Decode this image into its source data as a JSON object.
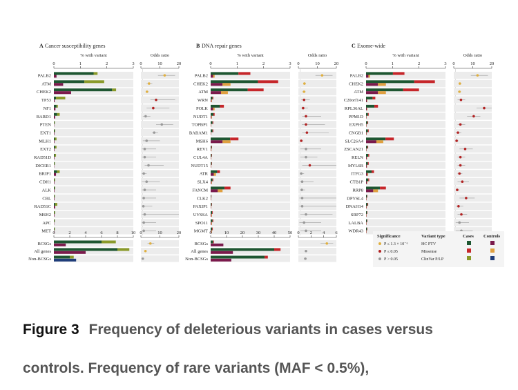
{
  "colors": {
    "cases_hc": "#1e5631",
    "controls_hc": "#7b1a4c",
    "cases_mis": "#c6262a",
    "controls_mis": "#e0a040",
    "cases_clin": "#8a9a2a",
    "controls_clin": "#1f3d7a",
    "or_sig1": "#e0b040",
    "or_sig2": "#b22222",
    "or_ns": "#999999",
    "row_bg": "#ececec"
  },
  "chart_data": [
    {
      "type": "bar",
      "panel": "A",
      "title": "Cancer susceptibility genes",
      "xlabel": "% with variant",
      "xlim": [
        0,
        3
      ],
      "xticks": [
        "0",
        "1",
        "2",
        "3"
      ],
      "categories": [
        "PALB2",
        "ATM",
        "CHEK2",
        "TP53",
        "NF1",
        "BARD1",
        "PTEN",
        "EXT1",
        "MLH1",
        "EXT2",
        "RAD51D",
        "DICER1",
        "BRIP1",
        "CDH1",
        "ALK",
        "CBL",
        "RAD51C",
        "MSH2",
        "APC",
        "MET"
      ],
      "series": [
        {
          "name": "Cases HC PTV",
          "values": [
            1.5,
            1.15,
            2.2,
            0.08,
            0.1,
            0.12,
            0.02,
            0.03,
            0.04,
            0.05,
            0.03,
            0.02,
            0.12,
            0.02,
            0.03,
            0.02,
            0.05,
            0.02,
            0.02,
            0.02
          ]
        },
        {
          "name": "Cases ClinVar P/LP",
          "values": [
            0.15,
            0.75,
            0.15,
            0.35,
            0.05,
            0.1,
            0.02,
            0.02,
            0.06,
            0.05,
            0.05,
            0.02,
            0.1,
            0.03,
            0.02,
            0.02,
            0.08,
            0.03,
            0.02,
            0.02
          ]
        },
        {
          "name": "Controls HC PTV",
          "values": [
            0.1,
            0.35,
            0.65,
            0.03,
            0.06,
            0.05,
            0.01,
            0.02,
            0.02,
            0.02,
            0.02,
            0.01,
            0.08,
            0.02,
            0.02,
            0.02,
            0.05,
            0.02,
            0.01,
            0.01
          ]
        }
      ]
    },
    {
      "type": "scatter",
      "panel": "A-OR",
      "title": "Odds ratio",
      "xlim": [
        0,
        20
      ],
      "xticks": [
        "0",
        "10",
        "20"
      ],
      "categories": [
        "PALB2",
        "ATM",
        "CHEK2",
        "TP53",
        "NF1",
        "BARD1",
        "PTEN",
        "EXT1",
        "MLH1",
        "EXT2",
        "RAD51D",
        "DICER1",
        "BRIP1",
        "CDH1",
        "ALK",
        "CBL",
        "RAD51C",
        "MSH2",
        "APC",
        "MET"
      ],
      "or": [
        12.5,
        4.3,
        3.2,
        8.0,
        6.5,
        2.5,
        11,
        7,
        3,
        2,
        2,
        4,
        1.5,
        3,
        2,
        1.5,
        1.3,
        2,
        1.5,
        1.5
      ],
      "lo": [
        9,
        3,
        2.5,
        5,
        3,
        1,
        8,
        6,
        1,
        0.5,
        0.5,
        2,
        0.5,
        0.5,
        0.5,
        0.5,
        0.5,
        0.5,
        0.5,
        0.5
      ],
      "hi": [
        18,
        6,
        4,
        18,
        15,
        5,
        17,
        9,
        10,
        8,
        8,
        12,
        3,
        10,
        8,
        8,
        6,
        20,
        8,
        8
      ],
      "sig": [
        1,
        1,
        1,
        2,
        2,
        0,
        0,
        0,
        0,
        0,
        0,
        0,
        0,
        0,
        0,
        0,
        0,
        0,
        0,
        0
      ]
    },
    {
      "type": "bar",
      "panel": "B",
      "title": "DNA repair genes",
      "xlabel": "% with variant",
      "xlim": [
        0,
        3
      ],
      "xticks": [
        "0",
        "1",
        "2",
        "3"
      ],
      "categories": [
        "PALB2",
        "CHEK2",
        "ATM",
        "WRN",
        "POLK",
        "NUDT1",
        "TOPBP1",
        "BABAM1",
        "MSH6",
        "REV1",
        "CUL4A",
        "NUDT15",
        "ATR",
        "SLX4",
        "FANCM",
        "CLK2",
        "PAXIP1",
        "UVSSA",
        "SPO11",
        "MGMT"
      ],
      "series": [
        {
          "name": "Cases",
          "values": [
            1.5,
            2.55,
            2.0,
            0.1,
            0.5,
            0.15,
            0.1,
            0.1,
            1.05,
            0.05,
            0.05,
            0.05,
            0.35,
            0.1,
            0.75,
            0.03,
            0.05,
            0.08,
            0.1,
            0.08
          ]
        },
        {
          "name": "Controls",
          "values": [
            0.15,
            0.75,
            0.65,
            0.05,
            0.15,
            0.05,
            0.02,
            0.02,
            0.75,
            0.03,
            0.02,
            0.02,
            0.2,
            0.05,
            0.45,
            0.02,
            0.02,
            0.05,
            0.05,
            0.05
          ]
        }
      ]
    },
    {
      "type": "scatter",
      "panel": "B-OR",
      "title": "Odds ratio",
      "xlim": [
        0,
        20
      ],
      "xticks": [
        "0",
        "10",
        "20"
      ],
      "categories": [
        "PALB2",
        "CHEK2",
        "ATM",
        "WRN",
        "POLK",
        "NUDT1",
        "TOPBP1",
        "BABAM1",
        "MSH6",
        "REV1",
        "CUL4A",
        "NUDT15",
        "ATR",
        "SLX4",
        "FANCM",
        "CLK2",
        "PAXIP1",
        "UVSSA",
        "SPO11",
        "MGMT"
      ],
      "or": [
        12.5,
        3.2,
        3.0,
        3,
        2.5,
        4,
        4,
        4.5,
        1.5,
        4,
        4,
        6,
        1.5,
        2,
        1.8,
        2,
        2,
        4,
        3,
        4
      ],
      "lo": [
        9,
        2.5,
        2.2,
        1.5,
        1.2,
        2,
        1.8,
        2,
        1,
        1,
        1,
        2,
        0.8,
        0.8,
        1,
        0.5,
        0.5,
        1,
        0.5,
        1
      ],
      "hi": [
        18,
        4,
        3.8,
        6,
        5,
        12,
        14,
        16,
        2.5,
        12,
        10,
        20,
        3,
        8,
        3.5,
        20,
        20,
        18,
        12,
        12
      ],
      "sig": [
        1,
        1,
        1,
        2,
        2,
        2,
        2,
        2,
        2,
        0,
        0,
        2,
        0,
        0,
        0,
        0,
        0,
        0,
        0,
        0
      ]
    },
    {
      "type": "bar",
      "panel": "C",
      "title": "Exome-wide",
      "xlabel": "% with variant",
      "xlim": [
        0,
        3
      ],
      "xticks": [
        "0",
        "1",
        "2",
        "3"
      ],
      "categories": [
        "PALB2",
        "CHEK2",
        "ATM",
        "C20orf141",
        "RPL36AL",
        "PPM1D",
        "EXPH5",
        "CNGB1",
        "SLC26A4",
        "ZSCAN21",
        "RELN",
        "MYL6B",
        "ITFG3",
        "CTB1P",
        "RRP8",
        "DPYSL4",
        "DNAH14",
        "SRP72",
        "LALBA",
        "WDR43"
      ],
      "series": [
        {
          "name": "Cases",
          "values": [
            1.45,
            2.6,
            2.0,
            0.35,
            0.45,
            0.1,
            0.08,
            0.1,
            1.05,
            0.08,
            0.12,
            0.1,
            0.3,
            0.12,
            0.75,
            0.05,
            0.08,
            0.05,
            0.05,
            0.05
          ]
        },
        {
          "name": "Controls",
          "values": [
            0.15,
            0.75,
            0.75,
            0.05,
            0.05,
            0.02,
            0.02,
            0.03,
            0.65,
            0.02,
            0.04,
            0.04,
            0.08,
            0.05,
            0.45,
            0.02,
            0.03,
            0.02,
            0.02,
            0.02
          ]
        }
      ]
    },
    {
      "type": "scatter",
      "panel": "C-OR",
      "title": "Odds ratio",
      "xlim": [
        0,
        20
      ],
      "xticks": [
        "0",
        "10",
        "20"
      ],
      "categories": [
        "PALB2",
        "CHEK2",
        "ATM",
        "C20orf141",
        "RPL36AL",
        "PPM1D",
        "EXPH5",
        "CNGB1",
        "SLC26A4",
        "ZSCAN21",
        "RELN",
        "MYL6B",
        "ITFG3",
        "CTB1P",
        "RRP8",
        "DPYSL4",
        "DNAH14",
        "SRP72",
        "LALBA",
        "WDR43"
      ],
      "or": [
        12.5,
        3.2,
        3.0,
        3.8,
        16,
        10.5,
        3.5,
        2.2,
        1.5,
        6,
        3.5,
        3.5,
        3,
        4.5,
        1.8,
        6.5,
        2.5,
        4,
        3,
        4
      ],
      "lo": [
        9,
        2.5,
        2.2,
        2,
        12,
        7,
        2,
        1,
        1,
        3,
        2,
        2,
        2,
        2,
        1,
        3,
        1,
        2,
        1,
        1
      ],
      "hi": [
        18,
        4,
        3.8,
        6,
        20,
        14,
        6,
        4,
        2.5,
        10,
        6,
        6,
        4.5,
        8,
        3,
        11,
        5,
        7,
        8,
        10
      ],
      "sig": [
        1,
        1,
        1,
        2,
        2,
        2,
        2,
        2,
        2,
        2,
        2,
        2,
        2,
        2,
        2,
        2,
        2,
        2,
        0,
        0
      ]
    }
  ],
  "summary": {
    "categories": [
      "BCSGs",
      "All genes",
      "Non-BCSGs"
    ],
    "A": {
      "xlim": [
        0,
        10
      ],
      "xticks": [
        "0",
        "2",
        "4",
        "6",
        "8",
        "10"
      ],
      "cases": [
        7.8,
        9.5,
        2.5
      ],
      "cases2": [
        6.0,
        8.0,
        2.0
      ],
      "controls": [
        1.5,
        4.0,
        2.8
      ]
    },
    "A_or": {
      "xlim": [
        0,
        20
      ],
      "xticks": [
        "0",
        "10",
        "20"
      ],
      "or": [
        5.0,
        2.4,
        1.0
      ],
      "lo": [
        3.5,
        2.0,
        0.9
      ],
      "hi": [
        7.0,
        3.0,
        1.2
      ],
      "sig": [
        1,
        1,
        0
      ]
    },
    "B": {
      "xlim": [
        0,
        50
      ],
      "xticks": [
        "0",
        "10",
        "20",
        "30",
        "40",
        "50"
      ],
      "cases": [
        2.0,
        44,
        36
      ],
      "cases2": [
        1.5,
        40,
        34
      ],
      "controls": [
        8.0,
        14,
        13
      ]
    },
    "B_or": {
      "xlim": [
        0,
        6
      ],
      "xticks": [
        "0",
        "2",
        "4",
        "6"
      ],
      "or": [
        4.5,
        1.2,
        1.1
      ],
      "lo": [
        3.5,
        1.0,
        0.9
      ],
      "hi": [
        5.5,
        1.4,
        1.3
      ],
      "sig": [
        1,
        0,
        0
      ]
    }
  },
  "legend": {
    "sig_title": "Significance",
    "type_title": "Variant type",
    "cases_title": "Cases",
    "controls_title": "Controls",
    "rows": [
      {
        "sig": "P ≤ 1.3 × 10⁻⁶",
        "type": "HC PTV"
      },
      {
        "sig": "P ≤ 0.05",
        "type": "Missense"
      },
      {
        "sig": "P > 0.05",
        "type": "ClinVar P/LP"
      }
    ]
  },
  "caption": {
    "label": "Figure 3",
    "title": "Frequency of deleterious variants in cases versus",
    "subtitle": "controls. Frequency of rare variants (MAF < 0.5%),"
  }
}
